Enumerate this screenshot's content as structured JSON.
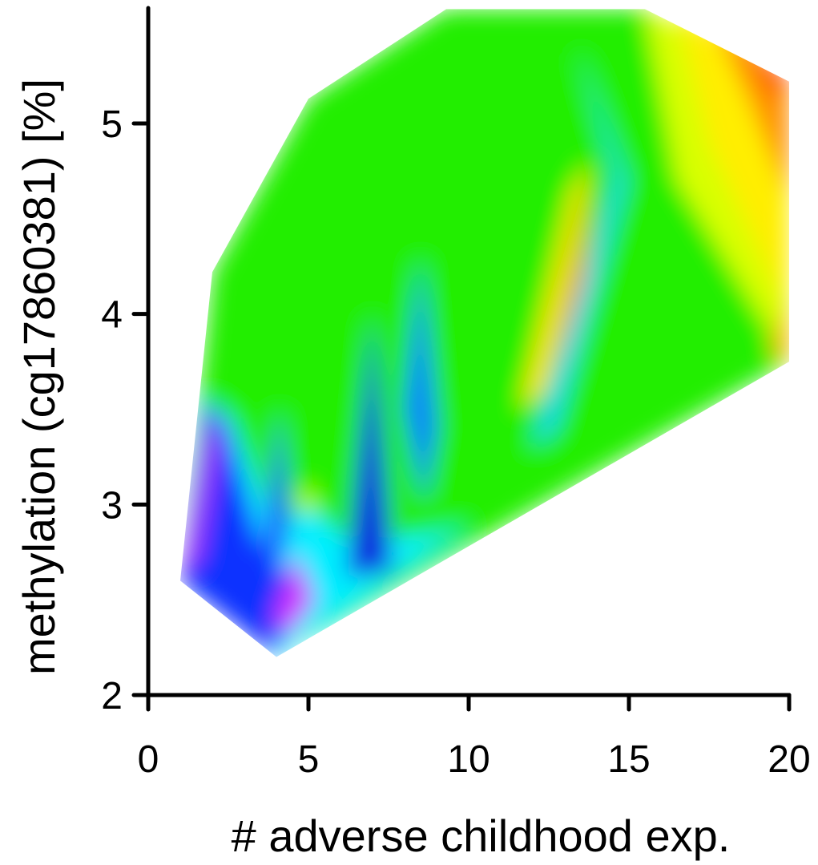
{
  "chart_data": {
    "type": "heatmap",
    "title": "",
    "xlabel": "# adverse childhood exp.",
    "ylabel": "methylation (cg17860381) [%]",
    "xlim": [
      0,
      20
    ],
    "ylim": [
      2,
      5.6
    ],
    "x_ticks": [
      0,
      5,
      10,
      15,
      20
    ],
    "y_ticks": [
      2,
      3,
      4,
      5
    ],
    "grid": false,
    "legend": "none",
    "color_scale": "rainbow (magenta-blue-cyan-green-yellow-red)",
    "hull": [
      [
        1,
        2.6
      ],
      [
        4,
        2.2
      ],
      [
        20,
        3.75
      ],
      [
        20,
        5.22
      ],
      [
        15.5,
        5.6
      ],
      [
        9.3,
        5.6
      ],
      [
        5,
        5.13
      ],
      [
        2,
        4.22
      ]
    ],
    "regions": [
      {
        "polygon": [
          [
            1,
            2.6
          ],
          [
            2,
            4.22
          ],
          [
            5,
            5.13
          ],
          [
            9.3,
            5.6
          ],
          [
            15.5,
            5.6
          ],
          [
            20,
            5.22
          ],
          [
            20,
            3.75
          ],
          [
            4,
            2.2
          ]
        ],
        "color": "#22ee00"
      },
      {
        "polygon": [
          [
            1,
            2.6
          ],
          [
            1.8,
            3.55
          ],
          [
            2.6,
            3.45
          ],
          [
            4,
            2.85
          ],
          [
            5,
            3.0
          ],
          [
            6.3,
            2.8
          ],
          [
            9,
            2.85
          ],
          [
            10,
            2.9
          ],
          [
            4,
            2.2
          ]
        ],
        "color": "#00eeff"
      },
      {
        "polygon": [
          [
            1,
            2.6
          ],
          [
            1.8,
            3.55
          ],
          [
            2.5,
            3.4
          ],
          [
            3.5,
            2.8
          ],
          [
            4.5,
            2.6
          ],
          [
            4,
            2.2
          ]
        ],
        "color": "#1030ff"
      },
      {
        "polygon": [
          [
            1.1,
            2.65
          ],
          [
            2,
            3.5
          ],
          [
            2.2,
            3.3
          ],
          [
            1.6,
            2.7
          ]
        ],
        "color": "#b020ff"
      },
      {
        "polygon": [
          [
            3.9,
            2.4
          ],
          [
            4.6,
            2.75
          ],
          [
            5.2,
            2.5
          ],
          [
            4.3,
            2.3
          ]
        ],
        "color": "#d030ff"
      },
      {
        "polygon": [
          [
            3.6,
            2.8
          ],
          [
            4.1,
            3.5
          ],
          [
            4.4,
            2.9
          ],
          [
            4,
            2.6
          ]
        ],
        "color": "#2050ff"
      },
      {
        "polygon": [
          [
            6.2,
            2.62
          ],
          [
            7.0,
            4.0
          ],
          [
            7.6,
            2.65
          ]
        ],
        "color": "#1020e0"
      },
      {
        "polygon": [
          [
            8.0,
            3.5
          ],
          [
            8.5,
            4.3
          ],
          [
            9.0,
            3.4
          ],
          [
            8.6,
            3.0
          ]
        ],
        "color": "#0080ff"
      },
      {
        "polygon": [
          [
            11.6,
            3.5
          ],
          [
            13.2,
            4.65
          ],
          [
            13.8,
            4.8
          ],
          [
            12.4,
            3.6
          ]
        ],
        "color": "#ffe000"
      },
      {
        "polygon": [
          [
            12.4,
            3.4
          ],
          [
            13.5,
            4.0
          ],
          [
            13.9,
            4.7
          ],
          [
            14.1,
            4.85
          ],
          [
            13.0,
            4.0
          ]
        ],
        "color": "#ff8800"
      },
      {
        "polygon": [
          [
            12.0,
            3.3
          ],
          [
            14.6,
            4.72
          ],
          [
            13.4,
            5.4
          ],
          [
            14.9,
            4.7
          ],
          [
            12.7,
            3.4
          ]
        ],
        "color": "#00d0ff"
      },
      {
        "polygon": [
          [
            15.5,
            5.6
          ],
          [
            16.5,
            4.7
          ],
          [
            20,
            3.75
          ],
          [
            20,
            5.22
          ]
        ],
        "color": "#d8ff00"
      },
      {
        "polygon": [
          [
            16.5,
            5.6
          ],
          [
            17.5,
            4.9
          ],
          [
            20,
            4.0
          ],
          [
            20,
            5.22
          ]
        ],
        "color": "#ffee00"
      },
      {
        "polygon": [
          [
            17.5,
            5.6
          ],
          [
            18.8,
            5.1
          ],
          [
            20,
            4.6
          ],
          [
            20,
            5.22
          ]
        ],
        "color": "#ff9000"
      },
      {
        "polygon": [
          [
            18.6,
            5.45
          ],
          [
            19.6,
            5.15
          ],
          [
            20,
            5.22
          ]
        ],
        "color": "#ff2000"
      },
      {
        "polygon": [
          [
            19.4,
            3.8
          ],
          [
            20,
            3.75
          ],
          [
            20,
            4.1
          ]
        ],
        "color": "#ffb000"
      },
      {
        "polygon": [
          [
            4.6,
            3.0
          ],
          [
            5.0,
            3.12
          ],
          [
            5.3,
            2.95
          ]
        ],
        "color": "#c8ff00"
      }
    ]
  }
}
